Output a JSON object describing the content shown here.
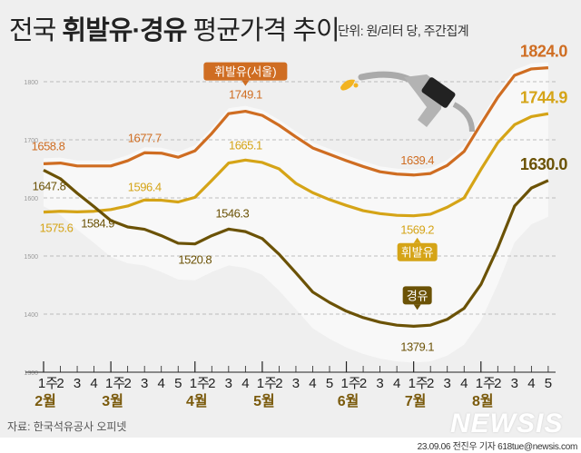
{
  "header": {
    "title_pre": "전국 ",
    "title_bold": "휘발유·경유",
    "title_post": " 평균가격 추이",
    "unit": "단위: 원/리터 당, 주간집계"
  },
  "footer": {
    "source": "자료: 한국석유공사 오피넷",
    "credit": "23.09.06 전진우 기자 618tue@newsis.com",
    "logo": "NEWSIS"
  },
  "chart_data": {
    "type": "line",
    "title": "전국 휘발유·경유 평균가격 추이",
    "ylim": [
      1300,
      1850
    ],
    "yticks": [
      1300,
      1400,
      1500,
      1600,
      1700,
      1800
    ],
    "grid": true,
    "x_week_labels": [
      "1주",
      "2",
      "3",
      "4",
      "1주",
      "2",
      "3",
      "4",
      "5",
      "1주",
      "2",
      "3",
      "4",
      "1주",
      "2",
      "3",
      "4",
      "5",
      "1주",
      "2",
      "3",
      "4",
      "1주",
      "2",
      "3",
      "4",
      "1주",
      "2",
      "3",
      "4",
      "5"
    ],
    "months": [
      {
        "label": "2월",
        "start": 0
      },
      {
        "label": "3월",
        "start": 4
      },
      {
        "label": "4월",
        "start": 9
      },
      {
        "label": "5월",
        "start": 13
      },
      {
        "label": "6월",
        "start": 18
      },
      {
        "label": "7월",
        "start": 22
      },
      {
        "label": "8월",
        "start": 26
      }
    ],
    "series": [
      {
        "name": "휘발유(서울)",
        "color": "#cf6d22",
        "values": [
          1658.8,
          1660,
          1655,
          1655,
          1655,
          1664,
          1677.7,
          1677,
          1670,
          1681,
          1711,
          1745,
          1749.1,
          1742,
          1725,
          1705,
          1686,
          1675,
          1664,
          1654,
          1645,
          1641,
          1639.4,
          1642,
          1656,
          1680,
          1727,
          1773,
          1811,
          1822,
          1824.0
        ]
      },
      {
        "name": "휘발유",
        "color": "#d5a417",
        "values": [
          1575.6,
          1577,
          1576,
          1577,
          1580,
          1586,
          1596.4,
          1596,
          1593,
          1601,
          1630,
          1660,
          1665.1,
          1661,
          1650,
          1625,
          1609,
          1597,
          1587,
          1578,
          1573,
          1570,
          1569.2,
          1572,
          1584,
          1600,
          1649,
          1695,
          1726,
          1740,
          1744.9
        ]
      },
      {
        "name": "경유",
        "color": "#6b5206",
        "values": [
          1647.8,
          1633,
          1608,
          1584.9,
          1561,
          1550,
          1546,
          1535,
          1522,
          1520.8,
          1535,
          1546.3,
          1542,
          1530,
          1503,
          1471,
          1438,
          1420,
          1405,
          1394,
          1386,
          1381,
          1379.1,
          1381,
          1391,
          1410,
          1451,
          1514,
          1586,
          1617,
          1630.0
        ]
      }
    ],
    "data_labels": [
      {
        "series": 0,
        "index": 0,
        "text": "1658.8"
      },
      {
        "series": 0,
        "index": 6,
        "text": "1677.7"
      },
      {
        "series": 0,
        "index": 12,
        "text": "1749.1"
      },
      {
        "series": 0,
        "index": 22,
        "text": "1639.4"
      },
      {
        "series": 0,
        "index": 30,
        "text": "1824.0"
      },
      {
        "series": 1,
        "index": 0,
        "text": "1575.6"
      },
      {
        "series": 1,
        "index": 6,
        "text": "1596.4"
      },
      {
        "series": 1,
        "index": 12,
        "text": "1665.1"
      },
      {
        "series": 1,
        "index": 22,
        "text": "1569.2"
      },
      {
        "series": 1,
        "index": 30,
        "text": "1744.9"
      },
      {
        "series": 2,
        "index": 0,
        "text": "1647.8"
      },
      {
        "series": 2,
        "index": 3,
        "text": "1584.9"
      },
      {
        "series": 2,
        "index": 9,
        "text": "1520.8"
      },
      {
        "series": 2,
        "index": 11,
        "text": "1546.3"
      },
      {
        "series": 2,
        "index": 22,
        "text": "1379.1"
      },
      {
        "series": 2,
        "index": 30,
        "text": "1630.0"
      }
    ]
  }
}
